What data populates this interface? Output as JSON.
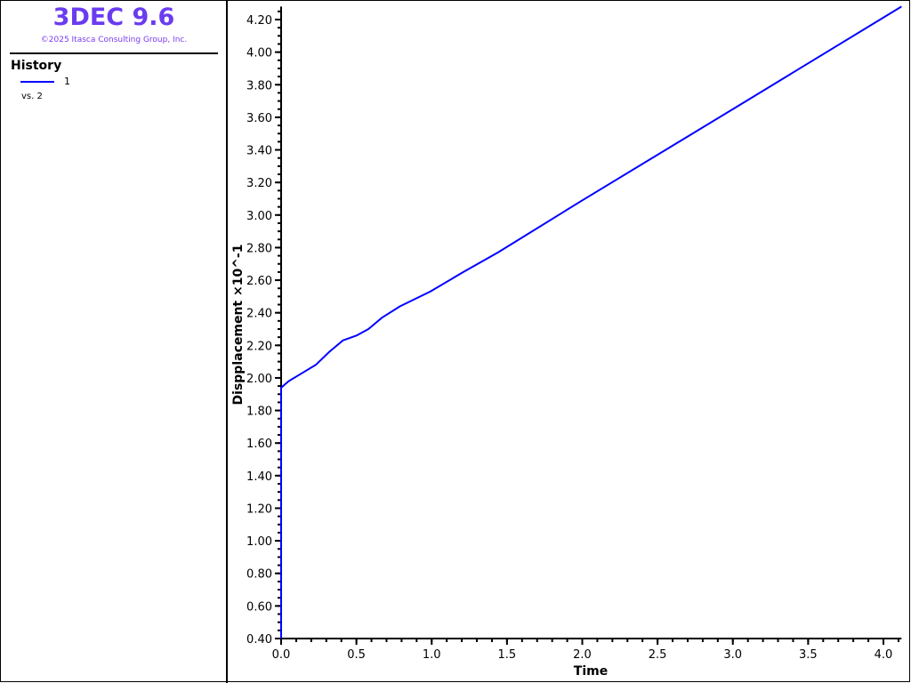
{
  "app": {
    "title": "3DEC 9.6",
    "copyright": "©2025 Itasca Consulting Group, Inc."
  },
  "legend": {
    "heading": "History",
    "series_label": "1",
    "vs_label": "vs. 2",
    "series_color": "#0000ff"
  },
  "chart_data": {
    "type": "line",
    "xlabel": "Time",
    "ylabel": "Dispplacement ×10^-1",
    "xlim": [
      0,
      4.12
    ],
    "ylim": [
      0.4,
      4.28
    ],
    "xticks": [
      "0.0",
      "0.5",
      "1.0",
      "1.5",
      "2.0",
      "2.5",
      "3.0",
      "3.5",
      "4.0"
    ],
    "yticks": [
      "0.40",
      "0.60",
      "0.80",
      "1.00",
      "1.20",
      "1.40",
      "1.60",
      "1.80",
      "2.00",
      "2.20",
      "2.40",
      "2.60",
      "2.80",
      "3.00",
      "3.20",
      "3.40",
      "3.60",
      "3.80",
      "4.00",
      "4.20"
    ],
    "grid": false,
    "series": [
      {
        "name": "1",
        "color": "#0000ff",
        "x": [
          0.0,
          0.0,
          0.05,
          0.14,
          0.23,
          0.32,
          0.41,
          0.5,
          0.58,
          0.67,
          0.79,
          0.99,
          1.21,
          1.44,
          2.0,
          3.0,
          4.12
        ],
        "y": [
          0.4,
          1.94,
          1.98,
          2.03,
          2.08,
          2.16,
          2.23,
          2.26,
          2.3,
          2.37,
          2.44,
          2.53,
          2.65,
          2.77,
          3.09,
          3.65,
          4.28
        ]
      }
    ]
  }
}
